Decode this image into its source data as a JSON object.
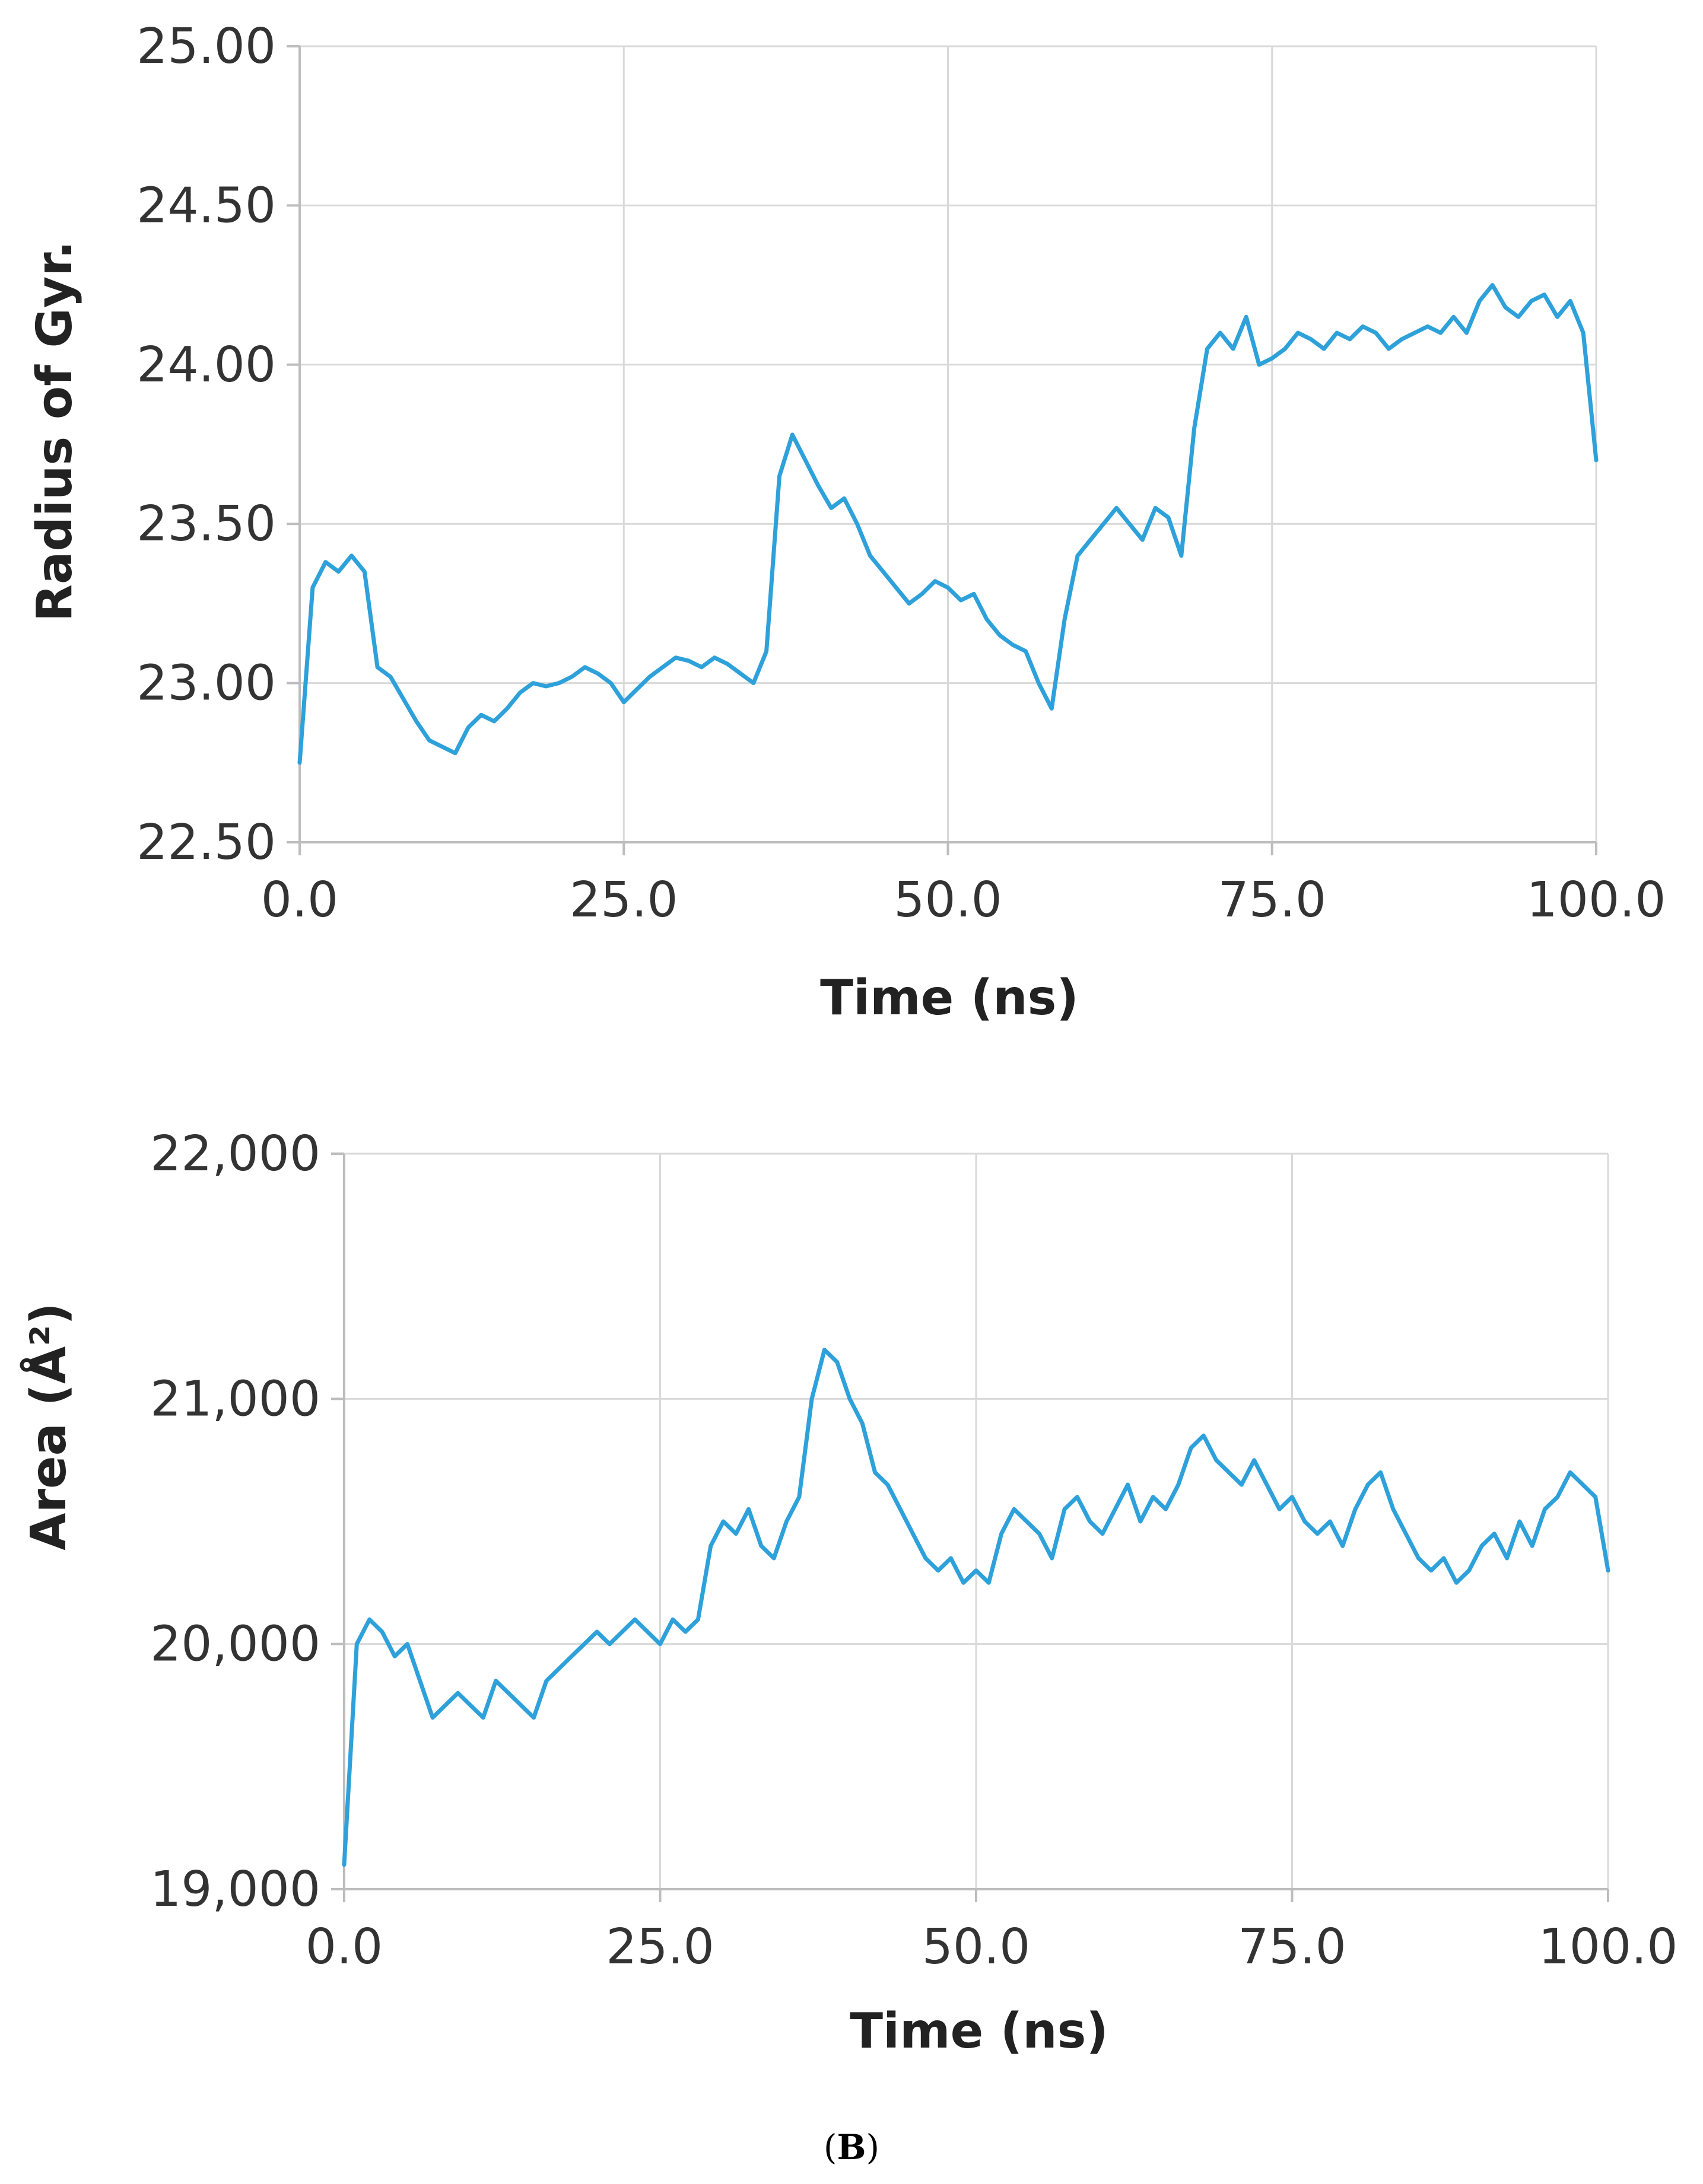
{
  "colors": {
    "series": "#2ea1da",
    "grid": "#d9d9d9",
    "axis": "#bdbdbd",
    "text": "#333333"
  },
  "panel_label": {
    "open": "(",
    "letter": "B",
    "close": ")"
  },
  "chart_data": [
    {
      "type": "line",
      "title": "",
      "xlabel": "Time (ns)",
      "ylabel": "Radius of Gyr.",
      "xlim": [
        0,
        100
      ],
      "ylim": [
        22.5,
        25.0
      ],
      "xticks": [
        0,
        25,
        50,
        75,
        100
      ],
      "xtick_labels": [
        "0.0",
        "25.0",
        "50.0",
        "75.0",
        "100.0"
      ],
      "yticks": [
        22.5,
        23.0,
        23.5,
        24.0,
        24.5,
        25.0
      ],
      "ytick_labels": [
        "22.50",
        "23.00",
        "23.50",
        "24.00",
        "24.50",
        "25.00"
      ],
      "grid": true,
      "legend": "none",
      "series": [
        {
          "x": [
            0,
            1,
            2,
            3,
            4,
            5,
            6,
            7,
            8,
            9,
            10,
            11,
            12,
            13,
            14,
            15,
            16,
            17,
            18,
            19,
            20,
            21,
            22,
            23,
            24,
            25,
            26,
            27,
            28,
            29,
            30,
            31,
            32,
            33,
            34,
            35,
            36,
            37,
            38,
            39,
            40,
            41,
            42,
            43,
            44,
            45,
            46,
            47,
            48,
            49,
            50,
            51,
            52,
            53,
            54,
            55,
            56,
            57,
            58,
            59,
            60,
            61,
            62,
            63,
            64,
            65,
            66,
            67,
            68,
            69,
            70,
            71,
            72,
            73,
            74,
            75,
            76,
            77,
            78,
            79,
            80,
            81,
            82,
            83,
            84,
            85,
            86,
            87,
            88,
            89,
            90,
            91,
            92,
            93,
            94,
            95,
            96,
            97,
            98,
            99,
            100
          ],
          "y": [
            22.75,
            23.3,
            23.38,
            23.35,
            23.4,
            23.35,
            23.05,
            23.02,
            22.95,
            22.88,
            22.82,
            22.8,
            22.78,
            22.86,
            22.9,
            22.88,
            22.92,
            22.97,
            23.0,
            22.99,
            23.0,
            23.02,
            23.05,
            23.03,
            23.0,
            22.94,
            22.98,
            23.02,
            23.05,
            23.08,
            23.07,
            23.05,
            23.08,
            23.06,
            23.03,
            23.0,
            23.1,
            23.65,
            23.78,
            23.7,
            23.62,
            23.55,
            23.58,
            23.5,
            23.4,
            23.35,
            23.3,
            23.25,
            23.28,
            23.32,
            23.3,
            23.26,
            23.28,
            23.2,
            23.15,
            23.12,
            23.1,
            23.0,
            22.92,
            23.2,
            23.4,
            23.45,
            23.5,
            23.55,
            23.5,
            23.45,
            23.55,
            23.52,
            23.4,
            23.8,
            24.05,
            24.1,
            24.05,
            24.15,
            24.0,
            24.02,
            24.05,
            24.1,
            24.08,
            24.05,
            24.1,
            24.08,
            24.12,
            24.1,
            24.05,
            24.08,
            24.1,
            24.12,
            24.1,
            24.15,
            24.1,
            24.2,
            24.25,
            24.18,
            24.15,
            24.2,
            24.22,
            24.15,
            24.2,
            24.1,
            23.7
          ]
        }
      ]
    },
    {
      "type": "line",
      "title": "",
      "xlabel": "Time (ns)",
      "ylabel": "Area (Å²)",
      "xlim": [
        0,
        100
      ],
      "ylim": [
        19000,
        22000
      ],
      "xticks": [
        0,
        25,
        50,
        75,
        100
      ],
      "xtick_labels": [
        "0.0",
        "25.0",
        "50.0",
        "75.0",
        "100.0"
      ],
      "yticks": [
        19000,
        20000,
        21000,
        22000
      ],
      "ytick_labels": [
        "19,000",
        "20,000",
        "21,000",
        "22,000"
      ],
      "grid": true,
      "legend": "none",
      "series": [
        {
          "x": [
            0,
            1,
            2,
            3,
            4,
            5,
            6,
            7,
            8,
            9,
            10,
            11,
            12,
            13,
            14,
            15,
            16,
            17,
            18,
            19,
            20,
            21,
            22,
            23,
            24,
            25,
            26,
            27,
            28,
            29,
            30,
            31,
            32,
            33,
            34,
            35,
            36,
            37,
            38,
            39,
            40,
            41,
            42,
            43,
            44,
            45,
            46,
            47,
            48,
            49,
            50,
            51,
            52,
            53,
            54,
            55,
            56,
            57,
            58,
            59,
            60,
            61,
            62,
            63,
            64,
            65,
            66,
            67,
            68,
            69,
            70,
            71,
            72,
            73,
            74,
            75,
            76,
            77,
            78,
            79,
            80,
            81,
            82,
            83,
            84,
            85,
            86,
            87,
            88,
            89,
            90,
            91,
            92,
            93,
            94,
            95,
            96,
            97,
            98,
            99,
            100
          ],
          "y": [
            19100,
            20000,
            20100,
            20050,
            19950,
            20000,
            19850,
            19700,
            19750,
            19800,
            19750,
            19700,
            19850,
            19800,
            19750,
            19700,
            19850,
            19900,
            19950,
            20000,
            20050,
            20000,
            20050,
            20100,
            20050,
            20000,
            20100,
            20050,
            20100,
            20400,
            20500,
            20450,
            20550,
            20400,
            20350,
            20500,
            20600,
            21000,
            21200,
            21150,
            21000,
            20900,
            20700,
            20650,
            20550,
            20450,
            20350,
            20300,
            20350,
            20250,
            20300,
            20250,
            20450,
            20550,
            20500,
            20450,
            20350,
            20550,
            20600,
            20500,
            20450,
            20550,
            20650,
            20500,
            20600,
            20550,
            20650,
            20800,
            20850,
            20750,
            20700,
            20650,
            20750,
            20650,
            20550,
            20600,
            20500,
            20450,
            20500,
            20400,
            20550,
            20650,
            20700,
            20550,
            20450,
            20350,
            20300,
            20350,
            20250,
            20300,
            20400,
            20450,
            20350,
            20500,
            20400,
            20550,
            20600,
            20700,
            20650,
            20600,
            20300
          ]
        }
      ]
    }
  ]
}
